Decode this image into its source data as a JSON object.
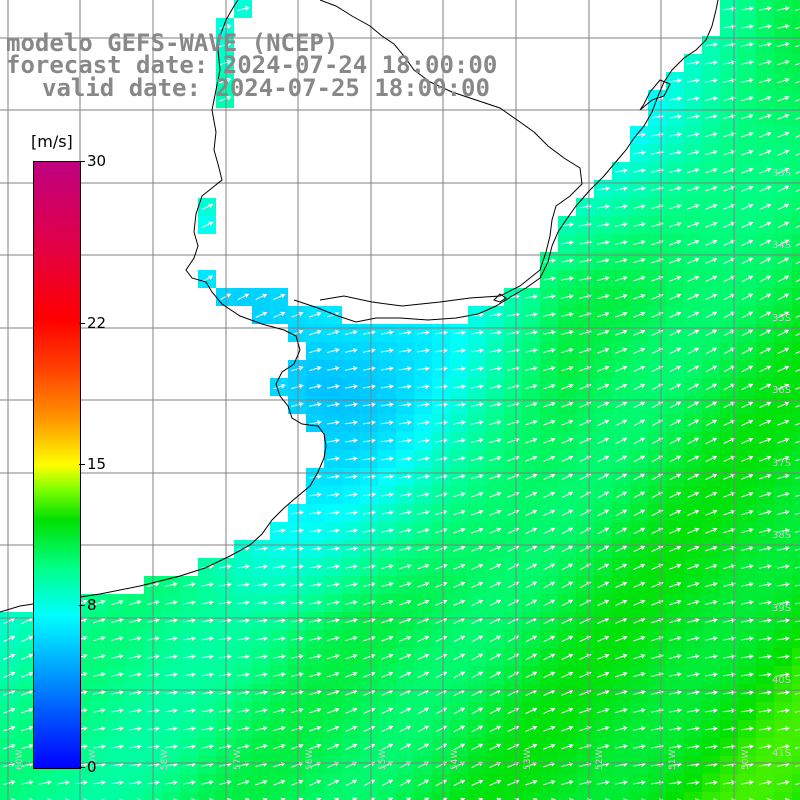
{
  "title": {
    "model": "modelo GEFS-WAVE (NCEP)",
    "forecast": "forecast date: 2024-07-24 18:00:00",
    "valid": "valid date: 2024-07-25 18:00:00"
  },
  "colorbar": {
    "unit": "[m/s]",
    "ticks": [
      "30",
      "22",
      "15",
      "8",
      "0"
    ],
    "tick_values": [
      30,
      22,
      15,
      8,
      0
    ],
    "min": 0,
    "max": 30
  },
  "map": {
    "latitude_labels": [
      "33S",
      "34S",
      "35S",
      "36S",
      "37S",
      "38S",
      "39S",
      "40S",
      "41S"
    ],
    "longitude_labels": [
      "60W",
      "59W",
      "58W",
      "57W",
      "56W",
      "55W",
      "54W",
      "53W",
      "52W",
      "51W",
      "50W"
    ],
    "colors": {
      "land": "#ffffff",
      "coast": "#000000",
      "grid": "#808080",
      "arrows": "#ffffff",
      "title": "#888888"
    }
  }
}
